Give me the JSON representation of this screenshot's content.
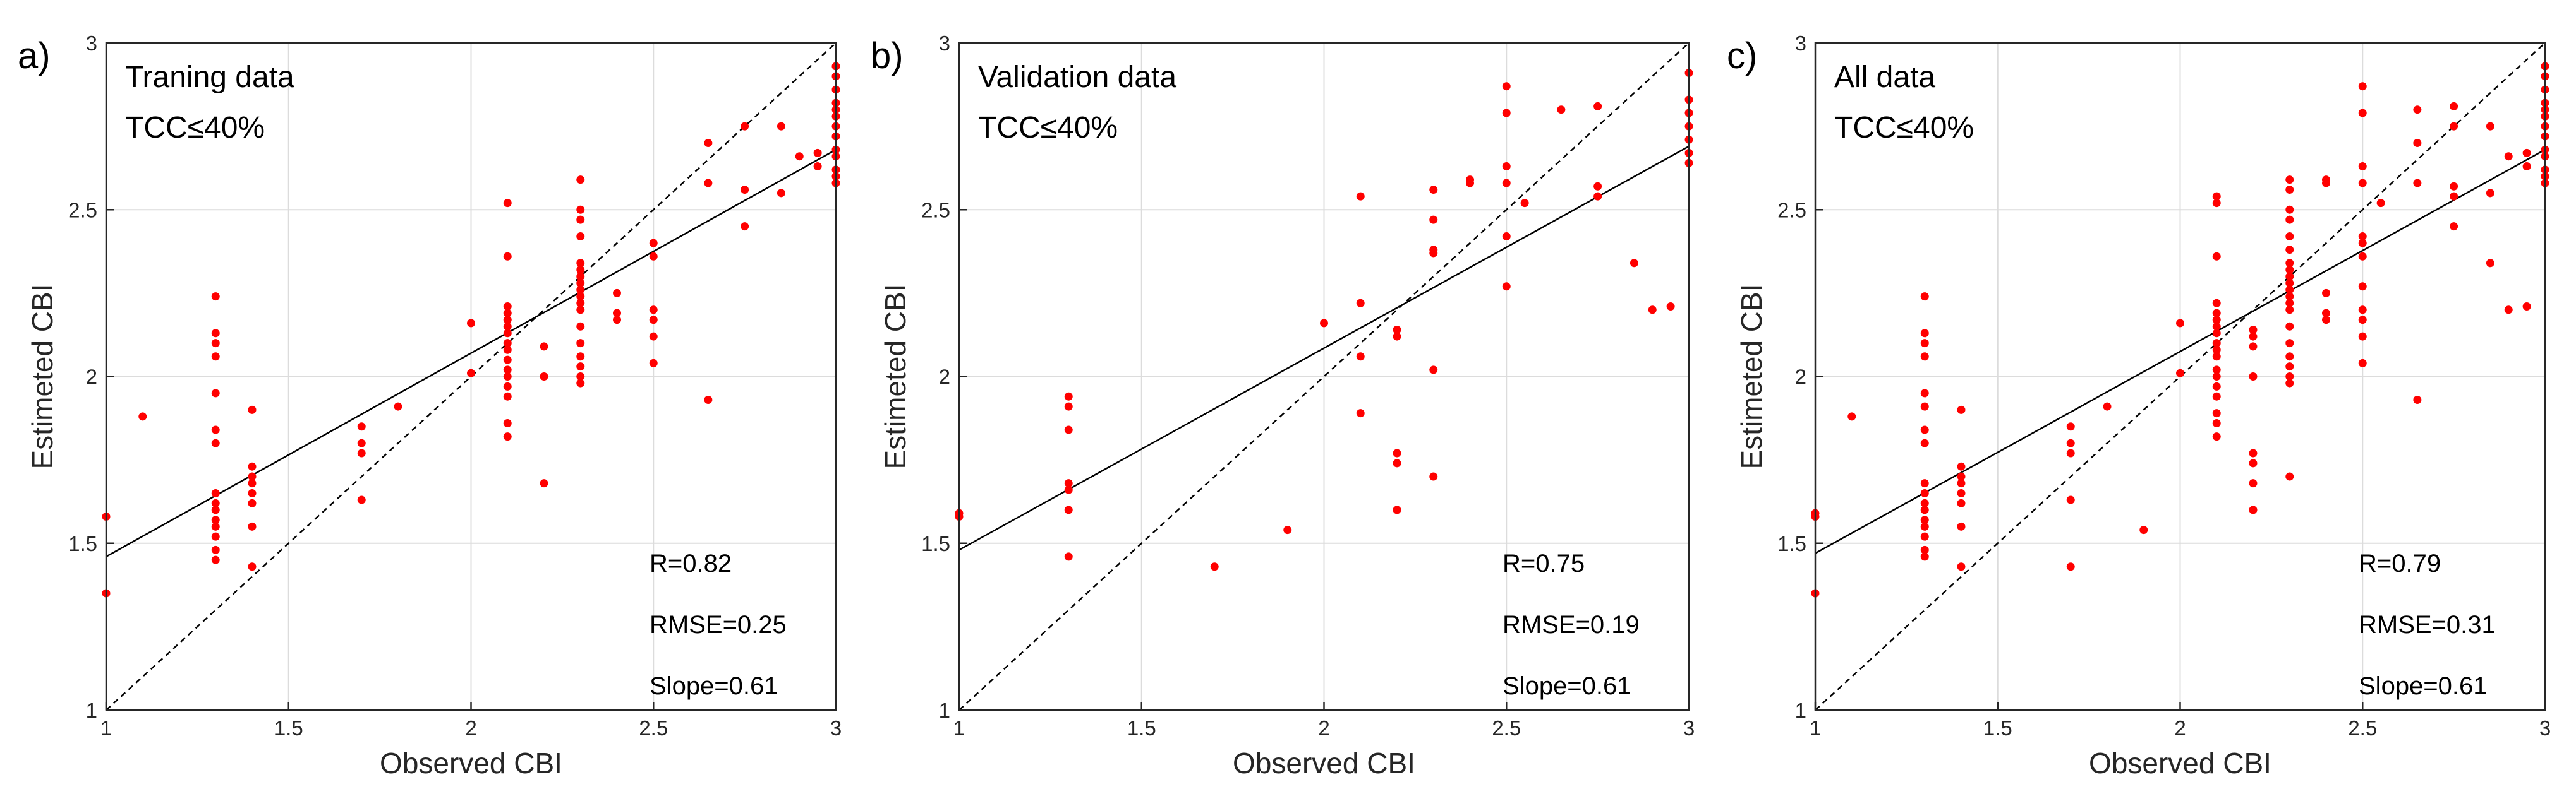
{
  "chart_data": [
    {
      "type": "scatter",
      "panel_label": "a)",
      "title_lines": [
        "Traning data",
        "TCC≤40%"
      ],
      "xlabel": "Observed CBI",
      "ylabel": "Estimeted CBI",
      "xlim": [
        1,
        3
      ],
      "ylim": [
        1,
        3
      ],
      "xticks": [
        1,
        1.5,
        2,
        2.5,
        3
      ],
      "yticks": [
        1,
        1.5,
        2,
        2.5,
        3
      ],
      "xtick_labels": [
        "1",
        "1.5",
        "2",
        "2.5",
        "3"
      ],
      "ytick_labels": [
        "1",
        "1.5",
        "2",
        "2.5",
        "3"
      ],
      "grid": true,
      "stats": [
        "R=0.82",
        "RMSE=0.25",
        "Slope=0.61"
      ],
      "fit_line": [
        [
          1,
          1.46
        ],
        [
          3,
          2.68
        ]
      ],
      "one_to_one": [
        [
          1,
          1
        ],
        [
          3,
          3
        ]
      ],
      "points": [
        [
          1.0,
          1.58
        ],
        [
          1.0,
          1.35
        ],
        [
          1.1,
          1.88
        ],
        [
          1.3,
          2.24
        ],
        [
          1.3,
          2.13
        ],
        [
          1.3,
          2.1
        ],
        [
          1.3,
          2.06
        ],
        [
          1.3,
          1.95
        ],
        [
          1.3,
          1.84
        ],
        [
          1.3,
          1.8
        ],
        [
          1.3,
          1.65
        ],
        [
          1.3,
          1.62
        ],
        [
          1.3,
          1.6
        ],
        [
          1.3,
          1.57
        ],
        [
          1.3,
          1.55
        ],
        [
          1.3,
          1.52
        ],
        [
          1.3,
          1.48
        ],
        [
          1.3,
          1.45
        ],
        [
          1.4,
          1.9
        ],
        [
          1.4,
          1.73
        ],
        [
          1.4,
          1.7
        ],
        [
          1.4,
          1.68
        ],
        [
          1.4,
          1.65
        ],
        [
          1.4,
          1.62
        ],
        [
          1.4,
          1.55
        ],
        [
          1.4,
          1.43
        ],
        [
          1.7,
          1.85
        ],
        [
          1.7,
          1.8
        ],
        [
          1.7,
          1.77
        ],
        [
          1.7,
          1.63
        ],
        [
          1.8,
          1.91
        ],
        [
          2.0,
          2.16
        ],
        [
          2.0,
          2.01
        ],
        [
          2.1,
          2.52
        ],
        [
          2.1,
          2.36
        ],
        [
          2.1,
          2.21
        ],
        [
          2.1,
          2.19
        ],
        [
          2.1,
          2.17
        ],
        [
          2.1,
          2.15
        ],
        [
          2.1,
          2.13
        ],
        [
          2.1,
          2.1
        ],
        [
          2.1,
          2.08
        ],
        [
          2.1,
          2.05
        ],
        [
          2.1,
          2.02
        ],
        [
          2.1,
          2.0
        ],
        [
          2.1,
          1.97
        ],
        [
          2.1,
          1.94
        ],
        [
          2.1,
          1.86
        ],
        [
          2.1,
          1.82
        ],
        [
          2.2,
          2.09
        ],
        [
          2.2,
          2.0
        ],
        [
          2.2,
          1.68
        ],
        [
          2.3,
          2.59
        ],
        [
          2.3,
          2.5
        ],
        [
          2.3,
          2.47
        ],
        [
          2.3,
          2.42
        ],
        [
          2.3,
          2.34
        ],
        [
          2.3,
          2.32
        ],
        [
          2.3,
          2.3
        ],
        [
          2.3,
          2.28
        ],
        [
          2.3,
          2.26
        ],
        [
          2.3,
          2.24
        ],
        [
          2.3,
          2.22
        ],
        [
          2.3,
          2.2
        ],
        [
          2.3,
          2.15
        ],
        [
          2.3,
          2.1
        ],
        [
          2.3,
          2.06
        ],
        [
          2.3,
          2.03
        ],
        [
          2.3,
          2.0
        ],
        [
          2.3,
          1.98
        ],
        [
          2.4,
          2.25
        ],
        [
          2.4,
          2.19
        ],
        [
          2.4,
          2.17
        ],
        [
          2.5,
          2.4
        ],
        [
          2.5,
          2.36
        ],
        [
          2.5,
          2.2
        ],
        [
          2.5,
          2.17
        ],
        [
          2.5,
          2.12
        ],
        [
          2.5,
          2.04
        ],
        [
          2.65,
          2.7
        ],
        [
          2.65,
          2.58
        ],
        [
          2.65,
          1.93
        ],
        [
          2.75,
          2.75
        ],
        [
          2.75,
          2.56
        ],
        [
          2.75,
          2.45
        ],
        [
          2.85,
          2.75
        ],
        [
          2.85,
          2.55
        ],
        [
          2.9,
          2.66
        ],
        [
          2.95,
          2.67
        ],
        [
          2.95,
          2.63
        ],
        [
          3.0,
          2.93
        ],
        [
          3.0,
          2.9
        ],
        [
          3.0,
          2.86
        ],
        [
          3.0,
          2.82
        ],
        [
          3.0,
          2.8
        ],
        [
          3.0,
          2.78
        ],
        [
          3.0,
          2.75
        ],
        [
          3.0,
          2.72
        ],
        [
          3.0,
          2.68
        ],
        [
          3.0,
          2.66
        ],
        [
          3.0,
          2.62
        ],
        [
          3.0,
          2.6
        ],
        [
          3.0,
          2.58
        ]
      ]
    },
    {
      "type": "scatter",
      "panel_label": "b)",
      "title_lines": [
        "Validation data",
        "TCC≤40%"
      ],
      "xlabel": "Observed CBI",
      "ylabel": "Estimeted CBI",
      "xlim": [
        1,
        3
      ],
      "ylim": [
        1,
        3
      ],
      "xticks": [
        1,
        1.5,
        2,
        2.5,
        3
      ],
      "yticks": [
        1,
        1.5,
        2,
        2.5,
        3
      ],
      "xtick_labels": [
        "1",
        "1.5",
        "2",
        "2.5",
        "3"
      ],
      "ytick_labels": [
        "1",
        "1.5",
        "2",
        "2.5",
        "3"
      ],
      "grid": true,
      "stats": [
        "R=0.75",
        "RMSE=0.19",
        "Slope=0.61"
      ],
      "fit_line": [
        [
          1,
          1.48
        ],
        [
          3,
          2.69
        ]
      ],
      "one_to_one": [
        [
          1,
          1
        ],
        [
          3,
          3
        ]
      ],
      "points": [
        [
          1.0,
          1.59
        ],
        [
          1.0,
          1.58
        ],
        [
          1.3,
          1.94
        ],
        [
          1.3,
          1.91
        ],
        [
          1.3,
          1.84
        ],
        [
          1.3,
          1.68
        ],
        [
          1.3,
          1.66
        ],
        [
          1.3,
          1.6
        ],
        [
          1.3,
          1.46
        ],
        [
          1.7,
          1.43
        ],
        [
          1.9,
          1.54
        ],
        [
          2.0,
          2.16
        ],
        [
          2.1,
          2.54
        ],
        [
          2.1,
          2.22
        ],
        [
          2.1,
          2.06
        ],
        [
          2.1,
          1.89
        ],
        [
          2.2,
          2.14
        ],
        [
          2.2,
          2.12
        ],
        [
          2.2,
          1.77
        ],
        [
          2.2,
          1.74
        ],
        [
          2.2,
          1.6
        ],
        [
          2.3,
          2.56
        ],
        [
          2.3,
          2.47
        ],
        [
          2.3,
          2.38
        ],
        [
          2.3,
          2.37
        ],
        [
          2.3,
          2.02
        ],
        [
          2.3,
          1.7
        ],
        [
          2.4,
          2.59
        ],
        [
          2.4,
          2.58
        ],
        [
          2.5,
          2.87
        ],
        [
          2.5,
          2.79
        ],
        [
          2.5,
          2.63
        ],
        [
          2.5,
          2.58
        ],
        [
          2.5,
          2.42
        ],
        [
          2.5,
          2.27
        ],
        [
          2.55,
          2.52
        ],
        [
          2.65,
          2.8
        ],
        [
          2.75,
          2.81
        ],
        [
          2.75,
          2.57
        ],
        [
          2.75,
          2.54
        ],
        [
          2.85,
          2.34
        ],
        [
          2.9,
          2.2
        ],
        [
          2.95,
          2.21
        ],
        [
          3.0,
          2.91
        ],
        [
          3.0,
          2.83
        ],
        [
          3.0,
          2.79
        ],
        [
          3.0,
          2.75
        ],
        [
          3.0,
          2.71
        ],
        [
          3.0,
          2.67
        ],
        [
          3.0,
          2.64
        ]
      ]
    },
    {
      "type": "scatter",
      "panel_label": "c)",
      "title_lines": [
        "All data",
        "TCC≤40%"
      ],
      "xlabel": "Observed CBI",
      "ylabel": "Estimeted CBI",
      "xlim": [
        1,
        3
      ],
      "ylim": [
        1,
        3
      ],
      "xticks": [
        1,
        1.5,
        2,
        2.5,
        3
      ],
      "yticks": [
        1,
        1.5,
        2,
        2.5,
        3
      ],
      "xtick_labels": [
        "1",
        "1.5",
        "2",
        "2.5",
        "3"
      ],
      "ytick_labels": [
        "1",
        "1.5",
        "2",
        "2.5",
        "3"
      ],
      "grid": true,
      "stats": [
        "R=0.79",
        "RMSE=0.31",
        "Slope=0.61"
      ],
      "fit_line": [
        [
          1,
          1.47
        ],
        [
          3,
          2.68
        ]
      ],
      "one_to_one": [
        [
          1,
          1
        ],
        [
          3,
          3
        ]
      ],
      "points": [
        [
          1.0,
          1.59
        ],
        [
          1.0,
          1.58
        ],
        [
          1.0,
          1.35
        ],
        [
          1.1,
          1.88
        ],
        [
          1.3,
          2.24
        ],
        [
          1.3,
          2.13
        ],
        [
          1.3,
          2.1
        ],
        [
          1.3,
          2.06
        ],
        [
          1.3,
          1.95
        ],
        [
          1.3,
          1.91
        ],
        [
          1.3,
          1.84
        ],
        [
          1.3,
          1.8
        ],
        [
          1.3,
          1.68
        ],
        [
          1.3,
          1.65
        ],
        [
          1.3,
          1.62
        ],
        [
          1.3,
          1.6
        ],
        [
          1.3,
          1.57
        ],
        [
          1.3,
          1.55
        ],
        [
          1.3,
          1.52
        ],
        [
          1.3,
          1.48
        ],
        [
          1.3,
          1.46
        ],
        [
          1.4,
          1.9
        ],
        [
          1.4,
          1.73
        ],
        [
          1.4,
          1.7
        ],
        [
          1.4,
          1.68
        ],
        [
          1.4,
          1.65
        ],
        [
          1.4,
          1.62
        ],
        [
          1.4,
          1.55
        ],
        [
          1.4,
          1.43
        ],
        [
          1.7,
          1.85
        ],
        [
          1.7,
          1.8
        ],
        [
          1.7,
          1.77
        ],
        [
          1.7,
          1.63
        ],
        [
          1.7,
          1.43
        ],
        [
          1.8,
          1.91
        ],
        [
          1.9,
          1.54
        ],
        [
          2.0,
          2.16
        ],
        [
          2.0,
          2.01
        ],
        [
          2.1,
          2.54
        ],
        [
          2.1,
          2.52
        ],
        [
          2.1,
          2.36
        ],
        [
          2.1,
          2.22
        ],
        [
          2.1,
          2.19
        ],
        [
          2.1,
          2.17
        ],
        [
          2.1,
          2.15
        ],
        [
          2.1,
          2.13
        ],
        [
          2.1,
          2.1
        ],
        [
          2.1,
          2.08
        ],
        [
          2.1,
          2.06
        ],
        [
          2.1,
          2.02
        ],
        [
          2.1,
          2.0
        ],
        [
          2.1,
          1.97
        ],
        [
          2.1,
          1.94
        ],
        [
          2.1,
          1.89
        ],
        [
          2.1,
          1.86
        ],
        [
          2.1,
          1.82
        ],
        [
          2.2,
          2.14
        ],
        [
          2.2,
          2.12
        ],
        [
          2.2,
          2.09
        ],
        [
          2.2,
          2.0
        ],
        [
          2.2,
          1.77
        ],
        [
          2.2,
          1.74
        ],
        [
          2.2,
          1.68
        ],
        [
          2.2,
          1.6
        ],
        [
          2.3,
          2.59
        ],
        [
          2.3,
          2.56
        ],
        [
          2.3,
          2.5
        ],
        [
          2.3,
          2.47
        ],
        [
          2.3,
          2.42
        ],
        [
          2.3,
          2.38
        ],
        [
          2.3,
          2.34
        ],
        [
          2.3,
          2.32
        ],
        [
          2.3,
          2.3
        ],
        [
          2.3,
          2.28
        ],
        [
          2.3,
          2.26
        ],
        [
          2.3,
          2.24
        ],
        [
          2.3,
          2.22
        ],
        [
          2.3,
          2.2
        ],
        [
          2.3,
          2.15
        ],
        [
          2.3,
          2.1
        ],
        [
          2.3,
          2.06
        ],
        [
          2.3,
          2.03
        ],
        [
          2.3,
          2.0
        ],
        [
          2.3,
          1.98
        ],
        [
          2.3,
          1.7
        ],
        [
          2.4,
          2.59
        ],
        [
          2.4,
          2.58
        ],
        [
          2.4,
          2.25
        ],
        [
          2.4,
          2.19
        ],
        [
          2.4,
          2.17
        ],
        [
          2.5,
          2.87
        ],
        [
          2.5,
          2.79
        ],
        [
          2.5,
          2.63
        ],
        [
          2.5,
          2.58
        ],
        [
          2.5,
          2.42
        ],
        [
          2.5,
          2.4
        ],
        [
          2.5,
          2.36
        ],
        [
          2.5,
          2.27
        ],
        [
          2.5,
          2.2
        ],
        [
          2.5,
          2.17
        ],
        [
          2.5,
          2.12
        ],
        [
          2.5,
          2.04
        ],
        [
          2.55,
          2.52
        ],
        [
          2.65,
          2.8
        ],
        [
          2.65,
          2.7
        ],
        [
          2.65,
          2.58
        ],
        [
          2.65,
          1.93
        ],
        [
          2.75,
          2.81
        ],
        [
          2.75,
          2.75
        ],
        [
          2.75,
          2.57
        ],
        [
          2.75,
          2.54
        ],
        [
          2.75,
          2.45
        ],
        [
          2.85,
          2.75
        ],
        [
          2.85,
          2.55
        ],
        [
          2.85,
          2.34
        ],
        [
          2.9,
          2.66
        ],
        [
          2.9,
          2.2
        ],
        [
          2.95,
          2.67
        ],
        [
          2.95,
          2.63
        ],
        [
          2.95,
          2.21
        ],
        [
          3.0,
          2.93
        ],
        [
          3.0,
          2.9
        ],
        [
          3.0,
          2.86
        ],
        [
          3.0,
          2.82
        ],
        [
          3.0,
          2.8
        ],
        [
          3.0,
          2.78
        ],
        [
          3.0,
          2.75
        ],
        [
          3.0,
          2.72
        ],
        [
          3.0,
          2.68
        ],
        [
          3.0,
          2.66
        ],
        [
          3.0,
          2.62
        ],
        [
          3.0,
          2.6
        ],
        [
          3.0,
          2.58
        ]
      ]
    }
  ],
  "colors": {
    "points": "#ff0000",
    "fit_line": "#000000",
    "one_to_one": "#000000",
    "grid": "#dcdcdc",
    "axis": "#262626"
  }
}
